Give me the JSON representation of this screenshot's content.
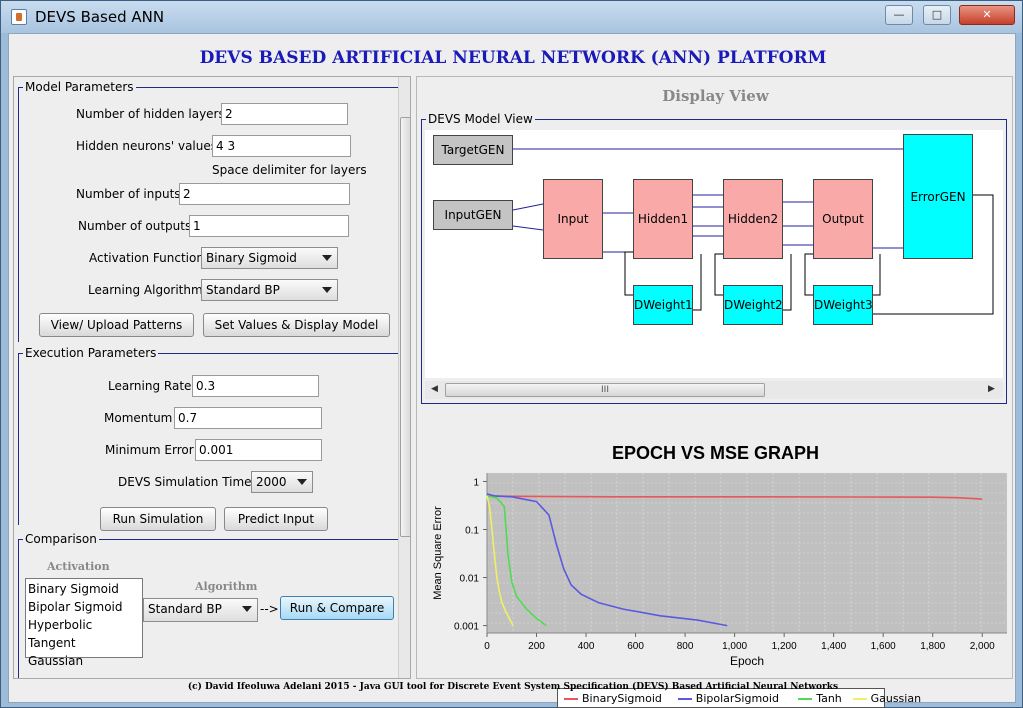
{
  "window": {
    "title": "DEVS Based ANN",
    "controls": [
      "—",
      "□",
      "✕"
    ]
  },
  "heading": "DEVS BASED ARTIFICIAL NEURAL NETWORK (ANN) PLATFORM",
  "model_params": {
    "title": "Model Parameters",
    "hidden_layers_label": "Number of hidden layers",
    "hidden_layers_value": "2",
    "hidden_neurons_label": "Hidden neurons' values",
    "hidden_neurons_value": "4 3",
    "delimiter_hint": "Space delimiter for layers",
    "inputs_label": "Number of inputs",
    "inputs_value": "2",
    "outputs_label": "Number of outputs",
    "outputs_value": "1",
    "activation_label": "Activation Function",
    "activation_value": "Binary Sigmoid",
    "learning_label": "Learning Algorithm",
    "learning_value": "Standard BP",
    "upload_button": "View/ Upload Patterns",
    "set_values_button": "Set Values & Display Model"
  },
  "exec_params": {
    "title": "Execution Parameters",
    "lr_label": "Learning Rate",
    "lr_value": "0.3",
    "momentum_label": "Momentum",
    "momentum_value": "0.7",
    "min_error_label": "Minimum Error",
    "min_error_value": "0.001",
    "sim_time_label": "DEVS Simulation Time",
    "sim_time_value": "2000",
    "run_button": "Run Simulation",
    "predict_button": "Predict Input"
  },
  "comparison": {
    "title": "Comparison",
    "activation_header": "Activation",
    "activation_items": [
      "Binary Sigmoid",
      "Bipolar Sigmoid",
      "Hyperbolic Tangent",
      "Gaussian"
    ],
    "algorithm_header": "Algorithm",
    "algorithm_value": "Standard BP",
    "arrow": "-->",
    "run_compare_button": "Run & Compare"
  },
  "display": {
    "title": "Display View",
    "model_view_title": "DEVS Model View",
    "blocks": {
      "target": "TargetGEN",
      "input_gen": "InputGEN",
      "input": "Input",
      "hidden1": "Hidden1",
      "hidden2": "Hidden2",
      "output": "Output",
      "error": "ErrorGEN",
      "dw1": "DWeight1",
      "dw2": "DWeight2",
      "dw3": "DWeight3"
    },
    "scroll_grip": "III"
  },
  "chart_data": {
    "type": "line",
    "title": "EPOCH VS MSE GRAPH",
    "xlabel": "Epoch",
    "ylabel": "Mean Square Error",
    "y_scale": "log",
    "xlim": [
      0,
      2100
    ],
    "ylim": [
      0.0007,
      1.5
    ],
    "x_ticks": [
      "0",
      "200",
      "400",
      "600",
      "800",
      "1,000",
      "1,200",
      "1,400",
      "1,600",
      "1,800",
      "2,000"
    ],
    "y_ticks": [
      "1",
      "0.1",
      "0.01",
      "0.001"
    ],
    "grid": true,
    "legend_position": "bottom",
    "series": [
      {
        "name": "BinarySigmoid",
        "color": "#e8585a",
        "x": [
          0,
          20,
          100,
          500,
          1000,
          1500,
          1800,
          1900,
          2000
        ],
        "y": [
          0.56,
          0.5,
          0.49,
          0.48,
          0.48,
          0.475,
          0.47,
          0.46,
          0.43
        ]
      },
      {
        "name": "BipolarSigmoid",
        "color": "#5a5ae0",
        "x": [
          0,
          30,
          100,
          200,
          250,
          280,
          310,
          340,
          380,
          450,
          550,
          700,
          850,
          970
        ],
        "y": [
          0.55,
          0.5,
          0.48,
          0.38,
          0.2,
          0.05,
          0.015,
          0.007,
          0.0045,
          0.003,
          0.0022,
          0.0016,
          0.0013,
          0.001
        ]
      },
      {
        "name": "Tanh",
        "color": "#50dc50",
        "x": [
          0,
          40,
          70,
          85,
          100,
          120,
          160,
          200,
          240
        ],
        "y": [
          0.5,
          0.45,
          0.3,
          0.03,
          0.008,
          0.004,
          0.0022,
          0.0014,
          0.001
        ]
      },
      {
        "name": "Gaussian",
        "color": "#f0f060",
        "x": [
          0,
          10,
          20,
          30,
          40,
          50,
          60,
          75,
          90,
          105
        ],
        "y": [
          0.5,
          0.3,
          0.1,
          0.03,
          0.01,
          0.005,
          0.003,
          0.002,
          0.0014,
          0.001
        ]
      }
    ]
  },
  "footer": "(c) David Ifeoluwa Adelani 2015 - Java GUI tool for Discrete Event System Specification (DEVS) Based Artificial Neural Networks"
}
